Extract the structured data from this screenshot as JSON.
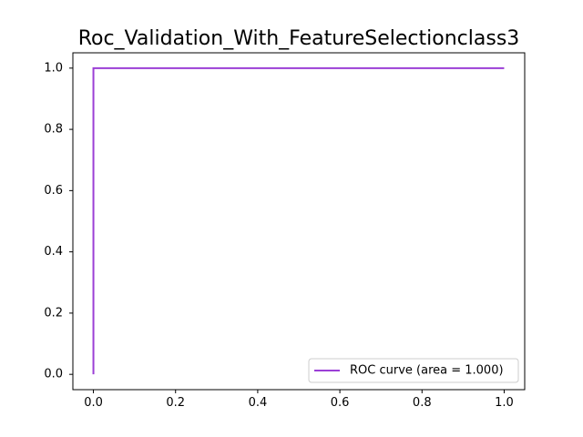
{
  "chart_data": {
    "type": "line",
    "title": "Roc_Validation_With_FeatureSelectionclass3",
    "xlabel": "",
    "ylabel": "",
    "xlim": [
      -0.05,
      1.05
    ],
    "ylim": [
      -0.05,
      1.05
    ],
    "xticks": [
      "0.0",
      "0.2",
      "0.4",
      "0.6",
      "0.8",
      "1.0"
    ],
    "yticks": [
      "0.0",
      "0.2",
      "0.4",
      "0.6",
      "0.8",
      "1.0"
    ],
    "grid": false,
    "legend_position": "lower-right",
    "series": [
      {
        "name": "ROC curve (area = 1.000)",
        "color": "#9b3fd6",
        "x": [
          0.0,
          0.0,
          1.0
        ],
        "y": [
          0.0,
          1.0,
          1.0
        ]
      }
    ]
  }
}
